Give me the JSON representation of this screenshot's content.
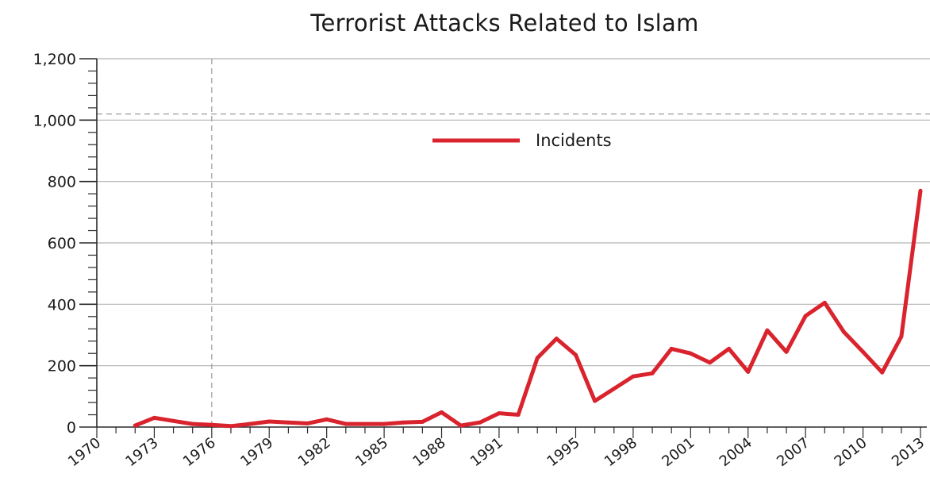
{
  "chart_data": {
    "type": "line",
    "title": "Terrorist Attacks Related to Islam",
    "xlabel": "",
    "ylabel": "",
    "xlim": [
      1970,
      2013
    ],
    "ylim": [
      0,
      1200
    ],
    "y_ticks": [
      0,
      200,
      400,
      600,
      800,
      1000,
      1200
    ],
    "y_tick_labels": [
      "0",
      "200",
      "400",
      "600",
      "800",
      "1,000",
      "1,200"
    ],
    "x_ticks": [
      1970,
      1973,
      1976,
      1979,
      1982,
      1985,
      1988,
      1991,
      1995,
      1998,
      2001,
      2004,
      2007,
      2010,
      2013
    ],
    "x_tick_labels": [
      "1970",
      "1973",
      "1976",
      "1979",
      "1982",
      "1985",
      "1988",
      "1991",
      "1995",
      "1998",
      "2001",
      "2004",
      "2007",
      "2010",
      "2013"
    ],
    "grid": "horizontal",
    "legend_position": "top-center",
    "reference_lines": {
      "x": 1976,
      "y": 1020
    },
    "line_color": "#d9232d",
    "series": [
      {
        "name": "Incidents",
        "x": [
          1972,
          1973,
          1974,
          1975,
          1976,
          1977,
          1978,
          1979,
          1980,
          1981,
          1982,
          1983,
          1984,
          1985,
          1986,
          1987,
          1988,
          1989,
          1990,
          1991,
          1992,
          1993,
          1994,
          1995,
          1996,
          1997,
          1998,
          1999,
          2000,
          2001,
          2002,
          2003,
          2004,
          2005,
          2006,
          2007,
          2008,
          2009,
          2010,
          2011,
          2012,
          2013
        ],
        "values": [
          5,
          30,
          20,
          10,
          7,
          3,
          10,
          18,
          15,
          12,
          25,
          10,
          10,
          10,
          15,
          17,
          48,
          5,
          15,
          45,
          40,
          225,
          288,
          235,
          85,
          125,
          165,
          175,
          255,
          240,
          210,
          255,
          180,
          315,
          245,
          362,
          405,
          310,
          245,
          178,
          295,
          770
        ]
      }
    ]
  }
}
